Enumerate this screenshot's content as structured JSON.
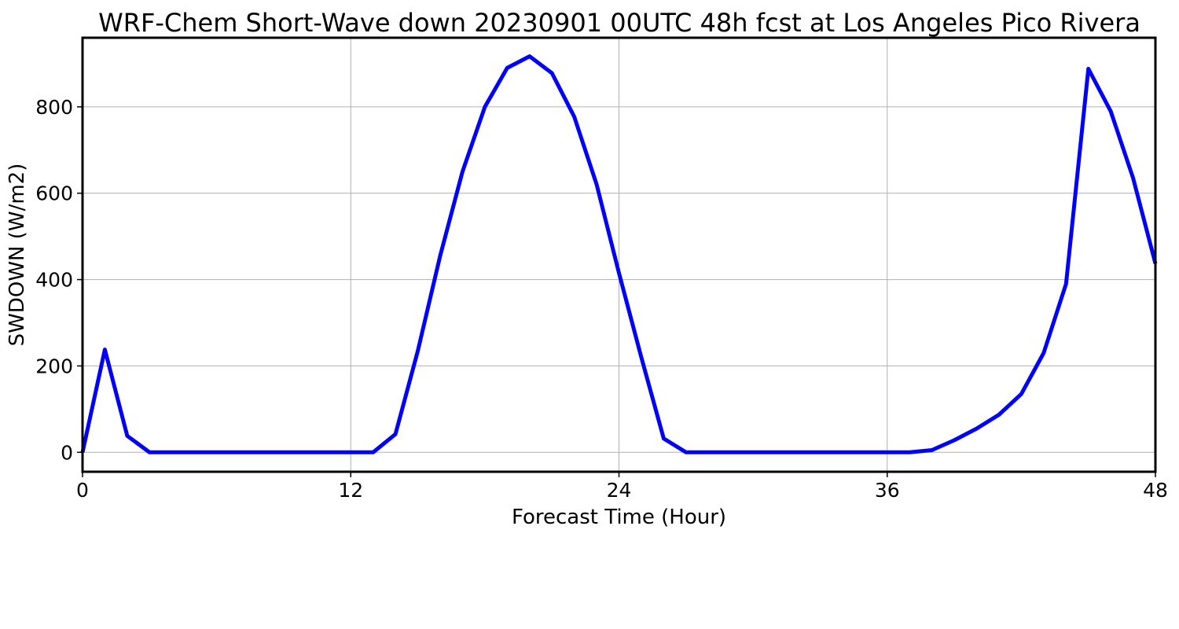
{
  "chart_data": {
    "type": "line",
    "title": "WRF-Chem Short-Wave down  20230901 00UTC 48h fcst at Los Angeles Pico Rivera",
    "xlabel": "Forecast Time (Hour)",
    "ylabel": "SWDOWN  (W/m2)",
    "xlim": [
      0,
      48
    ],
    "ylim": [
      -45,
      960
    ],
    "xticks": [
      0,
      12,
      24,
      36,
      48
    ],
    "yticks": [
      0,
      200,
      400,
      600,
      800
    ],
    "grid": true,
    "line_color": "#0000ff",
    "series": [
      {
        "x": [
          0,
          1,
          2,
          3,
          4,
          5,
          6,
          7,
          8,
          9,
          10,
          11,
          12,
          13,
          14,
          15,
          16,
          17,
          18,
          19,
          20,
          21,
          22,
          23,
          24,
          25,
          26,
          27,
          28,
          29,
          30,
          31,
          32,
          33,
          34,
          35,
          36,
          37,
          38,
          39,
          40,
          41,
          42,
          43,
          44,
          45,
          46,
          47,
          48
        ],
        "values": [
          0,
          238,
          38,
          0,
          0,
          0,
          0,
          0,
          0,
          0,
          0,
          0,
          0,
          0,
          42,
          235,
          455,
          650,
          800,
          890,
          917,
          878,
          777,
          620,
          415,
          220,
          32,
          0,
          0,
          0,
          0,
          0,
          0,
          0,
          0,
          0,
          0,
          0,
          5,
          28,
          55,
          87,
          135,
          230,
          390,
          888,
          790,
          635,
          437
        ]
      }
    ]
  }
}
